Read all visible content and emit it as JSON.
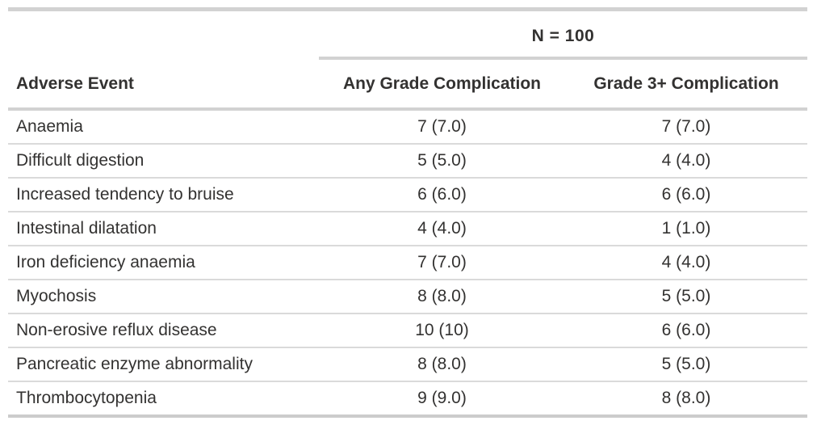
{
  "chart_data": {
    "type": "table",
    "spanner_label": "N = 100",
    "columns": [
      "Adverse Event",
      "Any Grade Complication",
      "Grade 3+ Complication"
    ],
    "rows": [
      {
        "adverse_event": "Anaemia",
        "any_grade": "7 (7.0)",
        "grade_3_plus": "7 (7.0)"
      },
      {
        "adverse_event": "Difficult digestion",
        "any_grade": "5 (5.0)",
        "grade_3_plus": "4 (4.0)"
      },
      {
        "adverse_event": "Increased tendency to bruise",
        "any_grade": "6 (6.0)",
        "grade_3_plus": "6 (6.0)"
      },
      {
        "adverse_event": "Intestinal dilatation",
        "any_grade": "4 (4.0)",
        "grade_3_plus": "1 (1.0)"
      },
      {
        "adverse_event": "Iron deficiency anaemia",
        "any_grade": "7 (7.0)",
        "grade_3_plus": "4 (4.0)"
      },
      {
        "adverse_event": "Myochosis",
        "any_grade": "8 (8.0)",
        "grade_3_plus": "5 (5.0)"
      },
      {
        "adverse_event": "Non-erosive reflux disease",
        "any_grade": "10 (10)",
        "grade_3_plus": "6 (6.0)"
      },
      {
        "adverse_event": "Pancreatic enzyme abnormality",
        "any_grade": "8 (8.0)",
        "grade_3_plus": "5 (5.0)"
      },
      {
        "adverse_event": "Thrombocytopenia",
        "any_grade": "9 (9.0)",
        "grade_3_plus": "8 (8.0)"
      }
    ],
    "layout": {
      "row_count": 9,
      "value_format": "n (%)"
    }
  },
  "colors": {
    "text": "#333231",
    "rule_heavy": "#d2d2d2",
    "rule_light": "#dadada",
    "rule_bottom": "#cccccc",
    "background": "#ffffff"
  }
}
